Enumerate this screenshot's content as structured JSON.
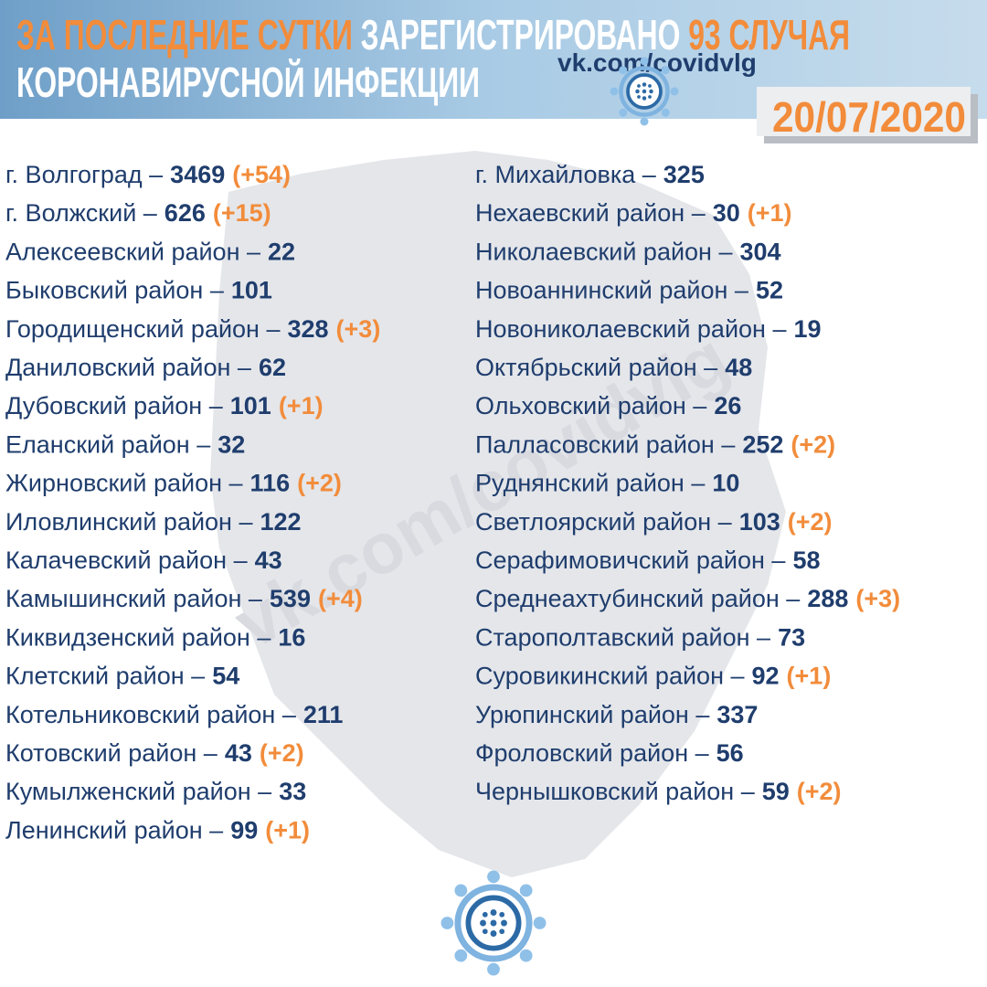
{
  "header": {
    "title_line1": [
      {
        "text": "ЗА ПОСЛЕДНИЕ СУТКИ",
        "color": "#f28c3b"
      },
      {
        "text": " ЗАРЕГИСТРИРОВАНО ",
        "color": "#ffffff"
      },
      {
        "text": "93 СЛУЧАЯ",
        "color": "#f28c3b"
      }
    ],
    "title_line2": "КОРОНАВИРУСНОЙ ИНФЕКЦИИ",
    "site": "vk.com/covidvlg",
    "date": "20/07/2020"
  },
  "watermark": "vk.com/covidvlg",
  "columns": [
    [
      {
        "name": "г. Волгоград –",
        "count": 3469,
        "change": "(+54)"
      },
      {
        "name": "г. Волжский –",
        "count": 626,
        "change": "(+15)"
      },
      {
        "name": "Алексеевский район –",
        "count": 22
      },
      {
        "name": "Быковский район –",
        "count": 101
      },
      {
        "name": "Городищенский район –",
        "count": 328,
        "change": "(+3)"
      },
      {
        "name": "Даниловский район –",
        "count": 62
      },
      {
        "name": "Дубовский район –",
        "count": 101,
        "change": "(+1)"
      },
      {
        "name": "Еланский район –",
        "count": 32
      },
      {
        "name": "Жирновский район –",
        "count": 116,
        "change": "(+2)"
      },
      {
        "name": "Иловлинский район –",
        "count": 122
      },
      {
        "name": "Калачевский район –",
        "count": 43
      },
      {
        "name": "Камышинский район –",
        "count": 539,
        "change": "(+4)"
      },
      {
        "name": "Киквидзенский район –",
        "count": 16
      },
      {
        "name": "Клетский район –",
        "count": 54
      },
      {
        "name": "Котельниковский район –",
        "count": 211
      },
      {
        "name": "Котовский район –",
        "count": 43,
        "change": "(+2)"
      },
      {
        "name": "Кумылженский район –",
        "count": 33
      },
      {
        "name": "Ленинский район –",
        "count": 99,
        "change": "(+1)"
      }
    ],
    [
      {
        "name": "г. Михайловка –",
        "count": 325
      },
      {
        "name": "Нехаевский район –",
        "count": 30,
        "change": "(+1)"
      },
      {
        "name": "Николаевский район –",
        "count": 304
      },
      {
        "name": "Новоаннинский район –",
        "count": 52
      },
      {
        "name": "Новониколаевский район –",
        "count": 19
      },
      {
        "name": "Октябрьский район –",
        "count": 48
      },
      {
        "name": "Ольховский район –",
        "count": 26
      },
      {
        "name": "Палласовский район –",
        "count": 252,
        "change": "(+2)"
      },
      {
        "name": "Руднянский район –",
        "count": 10
      },
      {
        "name": "Светлоярский район –",
        "count": 103,
        "change": "(+2)"
      },
      {
        "name": "Серафимовичский район –",
        "count": 58
      },
      {
        "name": "Среднеахтубинский район –",
        "count": 288,
        "change": "(+3)"
      },
      {
        "name": "Старополтавский район –",
        "count": 73
      },
      {
        "name": "Суровикинский район –",
        "count": 92,
        "change": "(+1)"
      },
      {
        "name": "Урюпинский район –",
        "count": 337
      },
      {
        "name": "Фроловский район –",
        "count": 56
      },
      {
        "name": "Чернышковский район –",
        "count": 59,
        "change": "(+2)"
      }
    ]
  ]
}
